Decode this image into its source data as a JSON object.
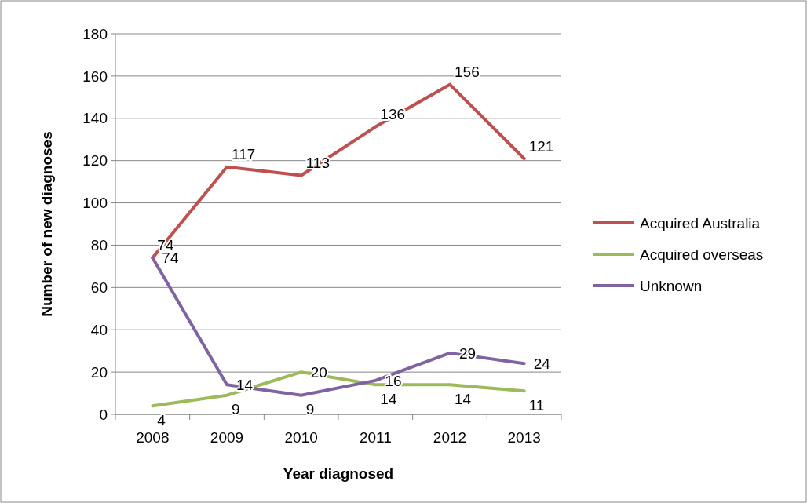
{
  "chart_data": {
    "type": "line",
    "xlabel": "Year diagnosed",
    "ylabel": "Number of new diagnoses",
    "categories": [
      "2008",
      "2009",
      "2010",
      "2011",
      "2012",
      "2013"
    ],
    "series": [
      {
        "name": "Acquired Australia",
        "color": "#c0504d",
        "values": [
          74,
          117,
          113,
          136,
          156,
          121
        ]
      },
      {
        "name": "Acquired overseas",
        "color": "#9bbb59",
        "values": [
          4,
          9,
          20,
          14,
          14,
          11
        ]
      },
      {
        "name": "Unknown",
        "color": "#8064a2",
        "values": [
          74,
          14,
          9,
          16,
          29,
          24
        ]
      }
    ],
    "ylim": [
      0,
      180
    ],
    "yticks": [
      0,
      20,
      40,
      60,
      80,
      100,
      120,
      140,
      160,
      180
    ],
    "grid": "y",
    "legend": "right",
    "marker": "none",
    "line_style": "solid",
    "data_labels": true
  }
}
